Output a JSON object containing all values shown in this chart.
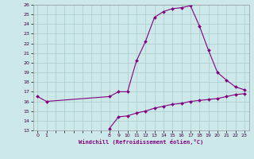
{
  "temp_hours": [
    0,
    1,
    8,
    9,
    10,
    11,
    12,
    13,
    14,
    15,
    16,
    17,
    18,
    19,
    20,
    21,
    22,
    23
  ],
  "temp_values": [
    16.5,
    16.0,
    16.5,
    17.0,
    17.0,
    20.2,
    22.2,
    24.7,
    25.3,
    25.6,
    25.7,
    25.9,
    23.8,
    21.3,
    19.0,
    18.2,
    17.5,
    17.2
  ],
  "wind_hours": [
    8,
    9,
    10,
    11,
    12,
    13,
    14,
    15,
    16,
    17,
    18,
    19,
    20,
    21,
    22,
    23
  ],
  "wind_values": [
    13.2,
    14.4,
    14.5,
    14.8,
    15.0,
    15.3,
    15.5,
    15.7,
    15.8,
    16.0,
    16.1,
    16.2,
    16.3,
    16.5,
    16.7,
    16.8
  ],
  "line_color": "#800080",
  "bg_color": "#cce8e8",
  "grid_color": "#aacccc",
  "xlabel": "Windchill (Refroidissement éolien,°C)",
  "xticks": [
    0,
    1,
    8,
    9,
    10,
    11,
    12,
    13,
    14,
    15,
    16,
    17,
    18,
    19,
    20,
    21,
    22,
    23
  ],
  "yticks": [
    13,
    14,
    15,
    16,
    17,
    18,
    19,
    20,
    21,
    22,
    23,
    24,
    25,
    26
  ],
  "ylim": [
    13,
    26
  ],
  "xlim": [
    -0.5,
    23.5
  ]
}
